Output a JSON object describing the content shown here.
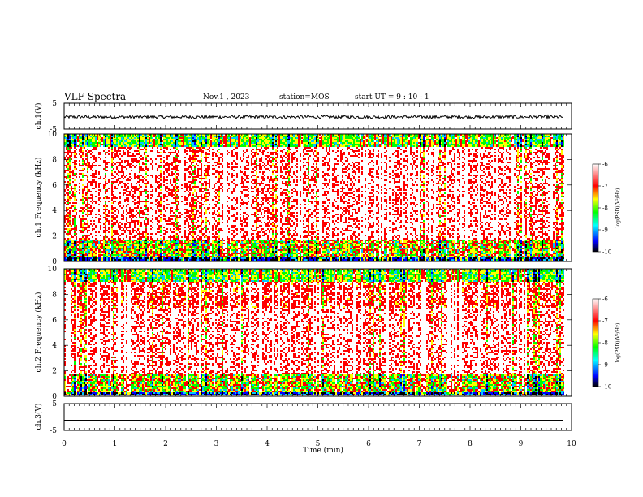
{
  "header": {
    "title": "VLF Spectra",
    "date": "Nov.1 , 2023",
    "station": "station=MOS",
    "start": "start UT = 9 : 10 : 1"
  },
  "colors": {
    "waveform": "#000000",
    "colorbar_stops": [
      "#000000",
      "#0000ff",
      "#00ffff",
      "#00ff00",
      "#ffff00",
      "#ff0000",
      "#ffffff"
    ]
  },
  "chart_data": [
    {
      "type": "line",
      "panel": "ch1-waveform",
      "ylabel": "ch.1(V)",
      "ylim": [
        -5,
        5
      ],
      "yticks": [
        "5",
        "-5"
      ],
      "xlim": [
        0,
        10
      ],
      "series": [
        {
          "level": -0.3,
          "noise_amplitude": 0.6
        }
      ]
    },
    {
      "type": "heatmap",
      "panel": "ch1-spectrogram",
      "ylabel": "ch.1 Frequency (kHz)",
      "ylim": [
        0,
        10
      ],
      "yticks": [
        "0",
        "2",
        "4",
        "6",
        "8",
        "10"
      ],
      "xlim": [
        0,
        10
      ],
      "data_end_min": 9.83,
      "colorbar": {
        "label": "log(PSD)(V²/Hz)",
        "range": [
          -10,
          -6
        ],
        "ticks": [
          "-6",
          "-7",
          "-8",
          "-9",
          "-10"
        ]
      }
    },
    {
      "type": "heatmap",
      "panel": "ch2-spectrogram",
      "ylabel": "ch.2 Frequency (kHz)",
      "ylim": [
        0,
        10
      ],
      "yticks": [
        "0",
        "2",
        "4",
        "6",
        "8",
        "10"
      ],
      "xlim": [
        0,
        10
      ],
      "data_end_min": 9.83,
      "colorbar": {
        "label": "log(PSD)(V²/Hz)",
        "range": [
          -10,
          -6
        ],
        "ticks": [
          "-6",
          "-7",
          "-8",
          "-9",
          "-10"
        ]
      }
    },
    {
      "type": "line",
      "panel": "ch3-waveform",
      "ylabel": "ch.3(V)",
      "ylim": [
        -5,
        5
      ],
      "yticks": [
        "5",
        "-5"
      ],
      "xlim": [
        0,
        10
      ],
      "series": [
        {
          "level": -1.3,
          "noise_amplitude": 0.0
        }
      ]
    }
  ],
  "xaxis": {
    "label": "Time (min)",
    "range": [
      0,
      10
    ],
    "ticks": [
      "0",
      "1",
      "2",
      "3",
      "4",
      "5",
      "6",
      "7",
      "8",
      "9",
      "10"
    ]
  }
}
